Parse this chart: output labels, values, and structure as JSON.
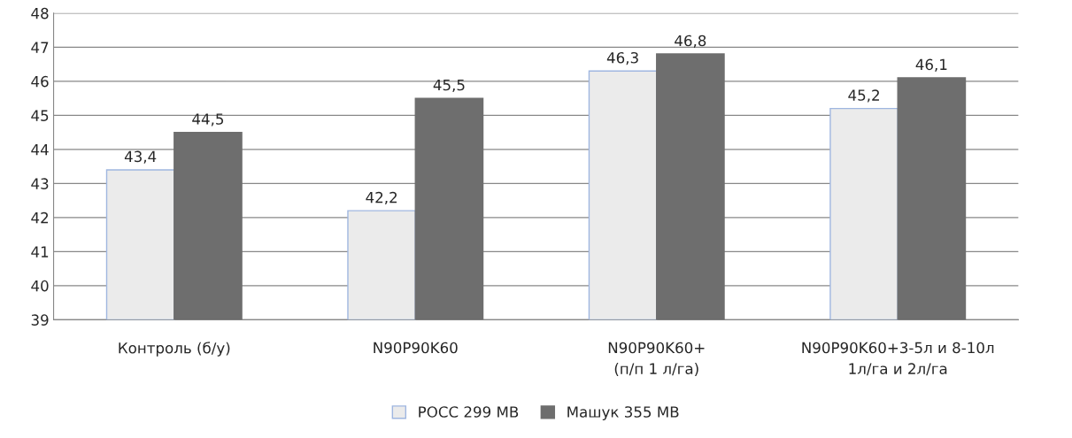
{
  "chart_data": {
    "type": "bar",
    "categories": [
      "Контроль (б/у)",
      "N90P90K60",
      "N90P90K60+\n(п/п 1 л/га)",
      "N90P90K60+3-5л и 8-10л\n1л/га и 2л/га"
    ],
    "series": [
      {
        "name": "РОСС 299 МВ",
        "color": "#ebebeb",
        "values": [
          43.4,
          42.2,
          46.3,
          45.2
        ],
        "value_labels": [
          "43,4",
          "42,2",
          "46,3",
          "45,2"
        ]
      },
      {
        "name": "Машук 355 МВ",
        "color": "#6e6e6e",
        "values": [
          44.5,
          45.5,
          46.8,
          46.1
        ],
        "value_labels": [
          "44,5",
          "45,5",
          "46,8",
          "46,1"
        ]
      }
    ],
    "ylim": [
      39,
      48
    ],
    "yticks": [
      39,
      40,
      41,
      42,
      43,
      44,
      45,
      46,
      47,
      48
    ],
    "grid": "y",
    "legend": "bottom"
  }
}
